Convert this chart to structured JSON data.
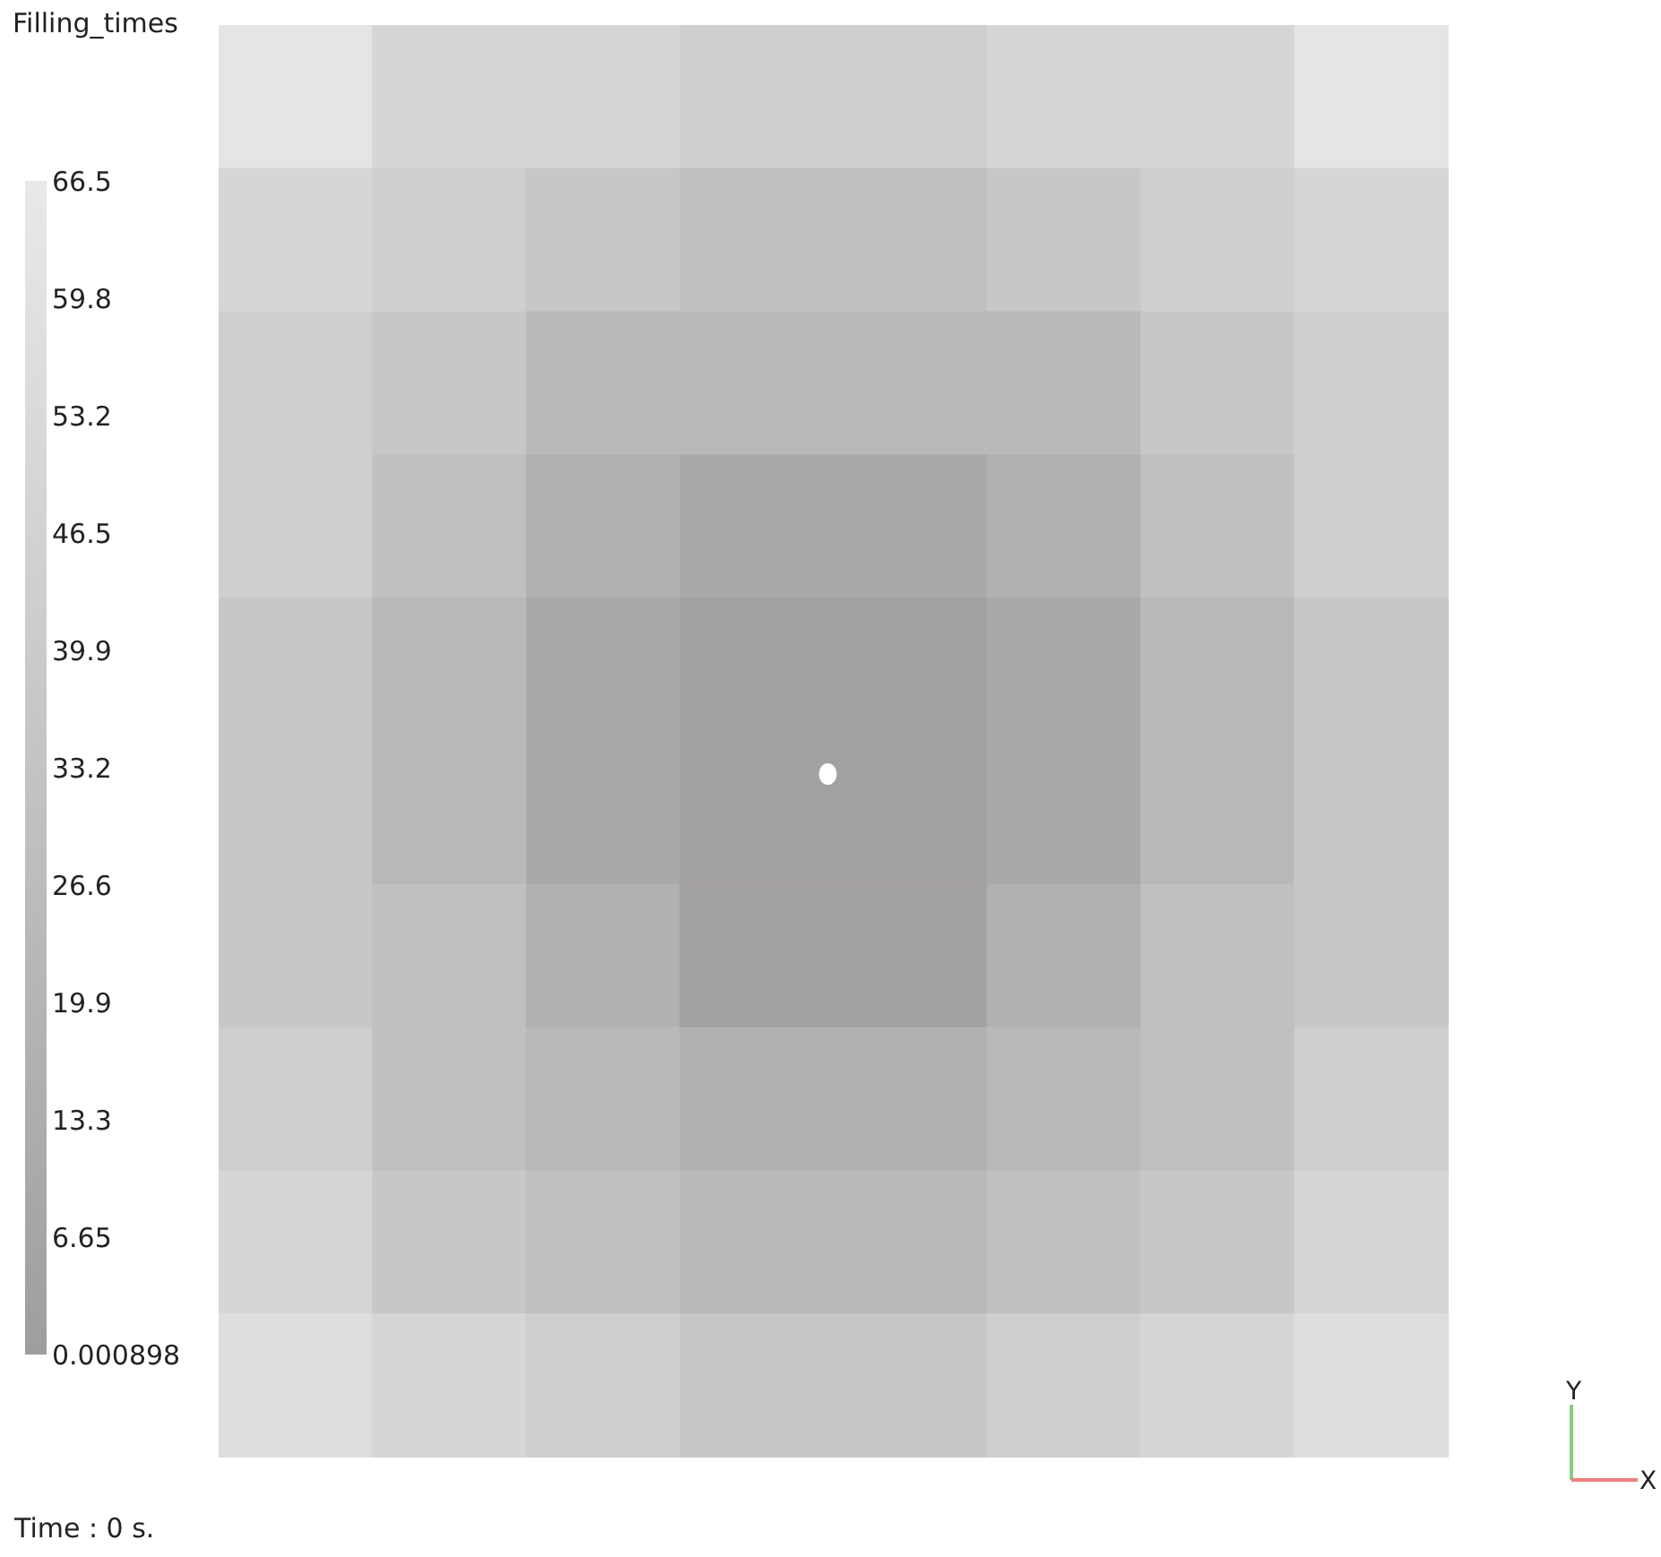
{
  "chart_data": {
    "type": "heatmap",
    "title": "Filling_times",
    "categories": [
      null,
      null,
      null,
      null,
      null,
      null,
      null,
      null
    ],
    "y_categories": [
      null,
      null,
      null,
      null,
      null,
      null,
      null,
      null,
      null,
      null
    ],
    "cells": [
      [
        63.2,
        49.9,
        49.9,
        43.2,
        43.2,
        49.9,
        49.9,
        63.2
      ],
      [
        49.9,
        43.2,
        36.6,
        29.9,
        29.9,
        36.6,
        43.2,
        49.9
      ],
      [
        43.2,
        36.6,
        23.3,
        23.3,
        23.3,
        23.3,
        36.6,
        43.2
      ],
      [
        43.2,
        29.9,
        16.6,
        10.0,
        10.0,
        16.6,
        29.9,
        43.2
      ],
      [
        36.6,
        23.3,
        10.0,
        3.3,
        3.3,
        10.0,
        23.3,
        36.6
      ],
      [
        36.6,
        23.3,
        10.0,
        3.3,
        3.3,
        10.0,
        23.3,
        36.6
      ],
      [
        36.6,
        29.9,
        16.6,
        3.3,
        3.3,
        16.6,
        29.9,
        36.6
      ],
      [
        43.2,
        29.9,
        23.3,
        16.6,
        16.6,
        23.3,
        29.9,
        43.2
      ],
      [
        49.9,
        36.6,
        29.9,
        23.3,
        23.3,
        29.9,
        36.6,
        49.9
      ],
      [
        56.5,
        49.9,
        43.2,
        36.6,
        36.6,
        43.2,
        49.9,
        56.5
      ]
    ],
    "clim": [
      0.000898,
      66.5
    ],
    "cticks": [
      0.000898,
      6.65,
      13.3,
      19.9,
      26.6,
      33.2,
      39.9,
      46.5,
      53.2,
      59.8,
      66.5
    ],
    "annotations": [
      "Time : 0 s.",
      "Y",
      "X"
    ]
  }
}
